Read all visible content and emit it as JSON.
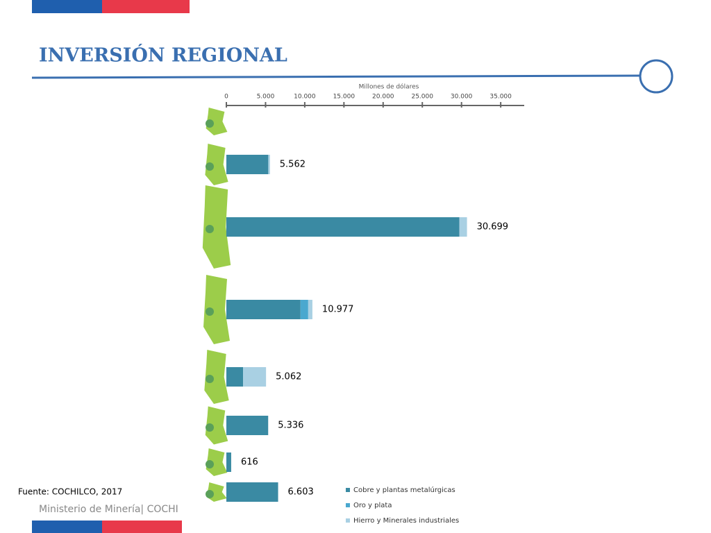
{
  "title": "INVERSIÓN REGIONAL",
  "source": "Fuente: COCHILCO, 2017",
  "footer": "Ministerio de Minería| COCHI",
  "chart_data": {
    "type": "stacked-bar-horizontal",
    "xlabel": "Millones de dólares",
    "categories": [
      null,
      null,
      null,
      null,
      null,
      null,
      null,
      null
    ],
    "xlim": [
      0,
      38000
    ],
    "xticks": [
      0,
      {
        "value": 5000,
        "label": "5.000"
      },
      {
        "value": 10000,
        "label": "10.000"
      },
      {
        "value": 15000,
        "label": "15.000"
      },
      {
        "value": 20000,
        "label": "20.000"
      },
      {
        "value": 25000,
        "label": "25.000"
      },
      {
        "value": 30000,
        "label": "30.000"
      },
      {
        "value": 35000,
        "label": "35.000"
      }
    ],
    "series": [
      {
        "name": "Cobre y plantas metalúrgicas",
        "color": "#3a8aa3",
        "values": [
          null,
          5350,
          29730,
          9460,
          2140,
          5336,
          616,
          6603
        ]
      },
      {
        "name": "Oro y plata",
        "color": "#4aa8cf",
        "values": [
          null,
          0,
          0,
          980,
          0,
          0,
          0,
          0
        ]
      },
      {
        "name": "Hierro y Minerales industriales",
        "color": "#a9d0e3",
        "values": [
          null,
          212,
          969,
          537,
          2922,
          0,
          0,
          0
        ]
      }
    ],
    "totals": [
      null,
      5562,
      30699,
      10977,
      5062,
      5336,
      616,
      6603
    ],
    "value_labels": [
      null,
      "5.562",
      "30.699",
      "10.977",
      "5.062",
      "5.336",
      "616",
      "6.603"
    ]
  }
}
